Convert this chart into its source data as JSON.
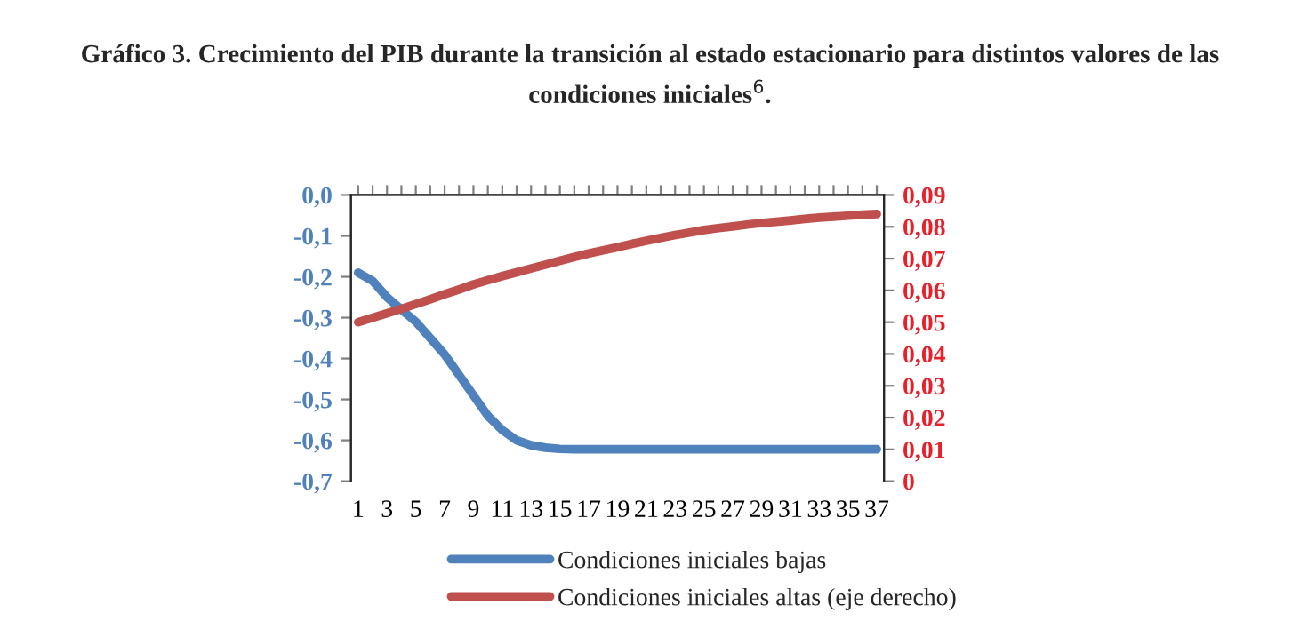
{
  "chart_data": {
    "type": "line",
    "title": "Gráfico 3. Crecimiento del PIB durante la transición al estado estacionario para distintos valores de las\ncondiciones iniciales$^{6}$.",
    "categories": [
      "1",
      null,
      "3",
      null,
      "5",
      null,
      "7",
      null,
      "9",
      null,
      "11",
      null,
      "13",
      null,
      "15",
      null,
      "17",
      null,
      "19",
      null,
      "21",
      null,
      "23",
      null,
      "25",
      null,
      "27",
      null,
      "29",
      null,
      "31",
      null,
      "33",
      null,
      "35",
      null,
      "37"
    ],
    "series": [
      {
        "name": "Condiciones iniciales bajas",
        "color": "#4f81bd",
        "values": [
          -0.19,
          -0.21,
          -0.25,
          -0.28,
          -0.31,
          -0.35,
          -0.39,
          -0.44,
          -0.49,
          -0.54,
          -0.575,
          -0.6,
          -0.612,
          -0.618,
          -0.621,
          -0.622,
          -0.622,
          -0.622,
          -0.622,
          -0.622,
          -0.622,
          -0.622,
          -0.622,
          -0.622,
          -0.622,
          -0.622,
          -0.622,
          -0.622,
          -0.622,
          -0.622,
          -0.622,
          -0.622,
          -0.622,
          -0.622,
          -0.622,
          -0.622,
          -0.622
        ]
      },
      {
        "name": "Condiciones iniciales altas (eje derecho)",
        "color": "#c0504d",
        "axis": "y2",
        "values": [
          0.05,
          0.0514,
          0.0528,
          0.0542,
          0.0557,
          0.0572,
          0.0588,
          0.0603,
          0.0619,
          0.0632,
          0.0645,
          0.0657,
          0.0669,
          0.0681,
          0.0693,
          0.0705,
          0.0716,
          0.0726,
          0.0736,
          0.0746,
          0.0756,
          0.0765,
          0.0774,
          0.0782,
          0.079,
          0.0796,
          0.0801,
          0.0807,
          0.0812,
          0.0816,
          0.082,
          0.0825,
          0.0829,
          0.0832,
          0.0835,
          0.0838,
          0.084
        ]
      }
    ],
    "ylim": [
      -0.7,
      0
    ],
    "yticks": [
      {
        "value": -0.7,
        "label": "-0,7"
      },
      {
        "value": -0.6,
        "label": "-0,6"
      },
      {
        "value": -0.5,
        "label": "-0,5"
      },
      {
        "value": -0.4,
        "label": "-0,4"
      },
      {
        "value": -0.3,
        "label": "-0,3"
      },
      {
        "value": -0.2,
        "label": "-0,2"
      },
      {
        "value": -0.1,
        "label": "-0,1"
      },
      {
        "value": 0,
        "label": "0,0"
      }
    ],
    "y2lim": [
      0,
      0.09
    ],
    "y2ticks": [
      0,
      {
        "value": 0.01,
        "label": "0,01"
      },
      {
        "value": 0.02,
        "label": "0,02"
      },
      {
        "value": 0.03,
        "label": "0,03"
      },
      {
        "value": 0.04,
        "label": "0,04"
      },
      {
        "value": 0.05,
        "label": "0,05"
      },
      {
        "value": 0.06,
        "label": "0,06"
      },
      {
        "value": 0.07,
        "label": "0,07"
      },
      {
        "value": 0.08,
        "label": "0,08"
      },
      {
        "value": 0.09,
        "label": "0,09"
      }
    ],
    "grid": false,
    "legend": "bottom"
  }
}
